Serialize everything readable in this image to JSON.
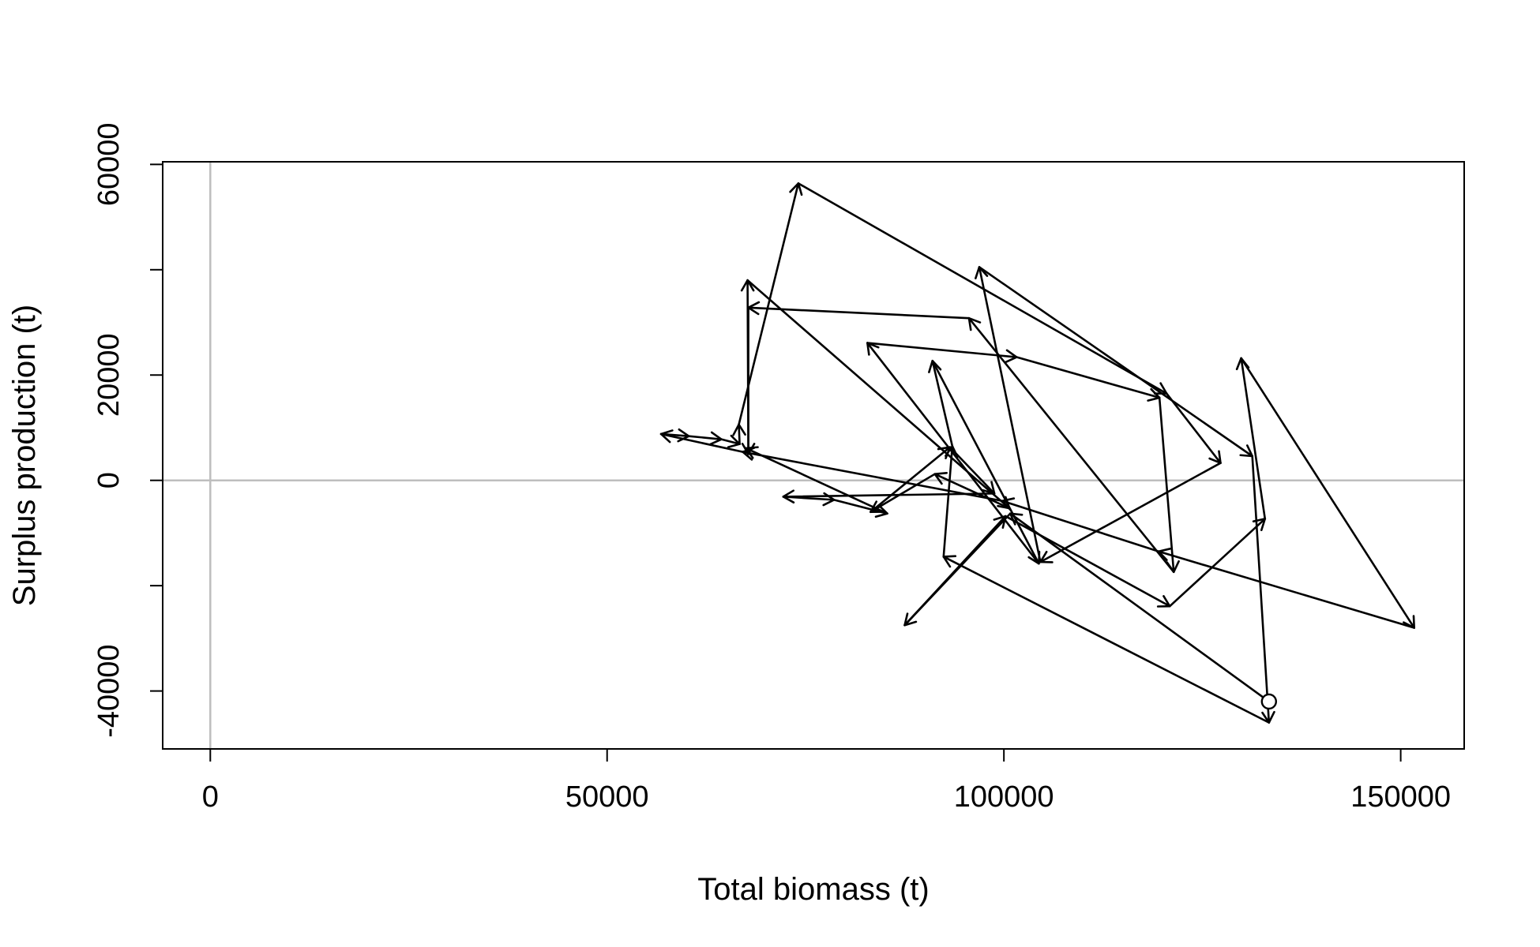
{
  "chart_data": {
    "type": "line",
    "title": "",
    "xlabel": "Total biomass (t)",
    "ylabel": "Surplus production (t)",
    "xlim": [
      -6000,
      158000
    ],
    "ylim": [
      -51000,
      60500
    ],
    "x_ticks": [
      0,
      50000,
      100000,
      150000
    ],
    "x_tick_labels": [
      "0",
      "50000",
      "100000",
      "150000"
    ],
    "y_ticks": [
      -40000,
      -20000,
      0,
      20000,
      40000,
      60000
    ],
    "y_tick_labels": [
      "-40000",
      "",
      "0",
      "20000",
      "",
      "60000"
    ],
    "reference_lines": {
      "x": 0,
      "y": 0,
      "color": "#bebebe"
    },
    "line_color": "#000000",
    "marker": "open circle at first point",
    "grid": false,
    "legend": "none",
    "series": [
      {
        "points": [
          [
            133400,
            -42000
          ],
          [
            100800,
            -6300
          ],
          [
            87500,
            -27500
          ],
          [
            100200,
            -6800
          ],
          [
            120900,
            -23900
          ],
          [
            132900,
            -7300
          ],
          [
            129900,
            23200
          ],
          [
            151700,
            -28000
          ],
          [
            119500,
            -13500
          ],
          [
            99800,
            -3900
          ],
          [
            67100,
            5400
          ],
          [
            56800,
            8800
          ],
          [
            60300,
            8400
          ],
          [
            64400,
            7800
          ],
          [
            66700,
            6900
          ],
          [
            66600,
            10600
          ],
          [
            74100,
            56400
          ],
          [
            120500,
            16500
          ],
          [
            127300,
            3300
          ],
          [
            104600,
            -15500
          ],
          [
            96900,
            40500
          ],
          [
            131300,
            4600
          ],
          [
            133400,
            -46000
          ],
          [
            92400,
            -14500
          ],
          [
            93500,
            6500
          ],
          [
            91000,
            22700
          ],
          [
            104400,
            -15800
          ],
          [
            82800,
            26100
          ],
          [
            101600,
            23400
          ],
          [
            119600,
            15700
          ],
          [
            121400,
            -17400
          ],
          [
            95600,
            30800
          ],
          [
            67800,
            32800
          ],
          [
            67800,
            5000
          ],
          [
            67700,
            38000
          ],
          [
            100700,
            -5300
          ],
          [
            91300,
            1200
          ],
          [
            83200,
            -6000
          ],
          [
            93200,
            6300
          ],
          [
            98800,
            -2500
          ],
          [
            72200,
            -3100
          ],
          [
            78600,
            -3700
          ],
          [
            85300,
            -6300
          ],
          [
            67500,
            6100
          ]
        ]
      }
    ]
  }
}
